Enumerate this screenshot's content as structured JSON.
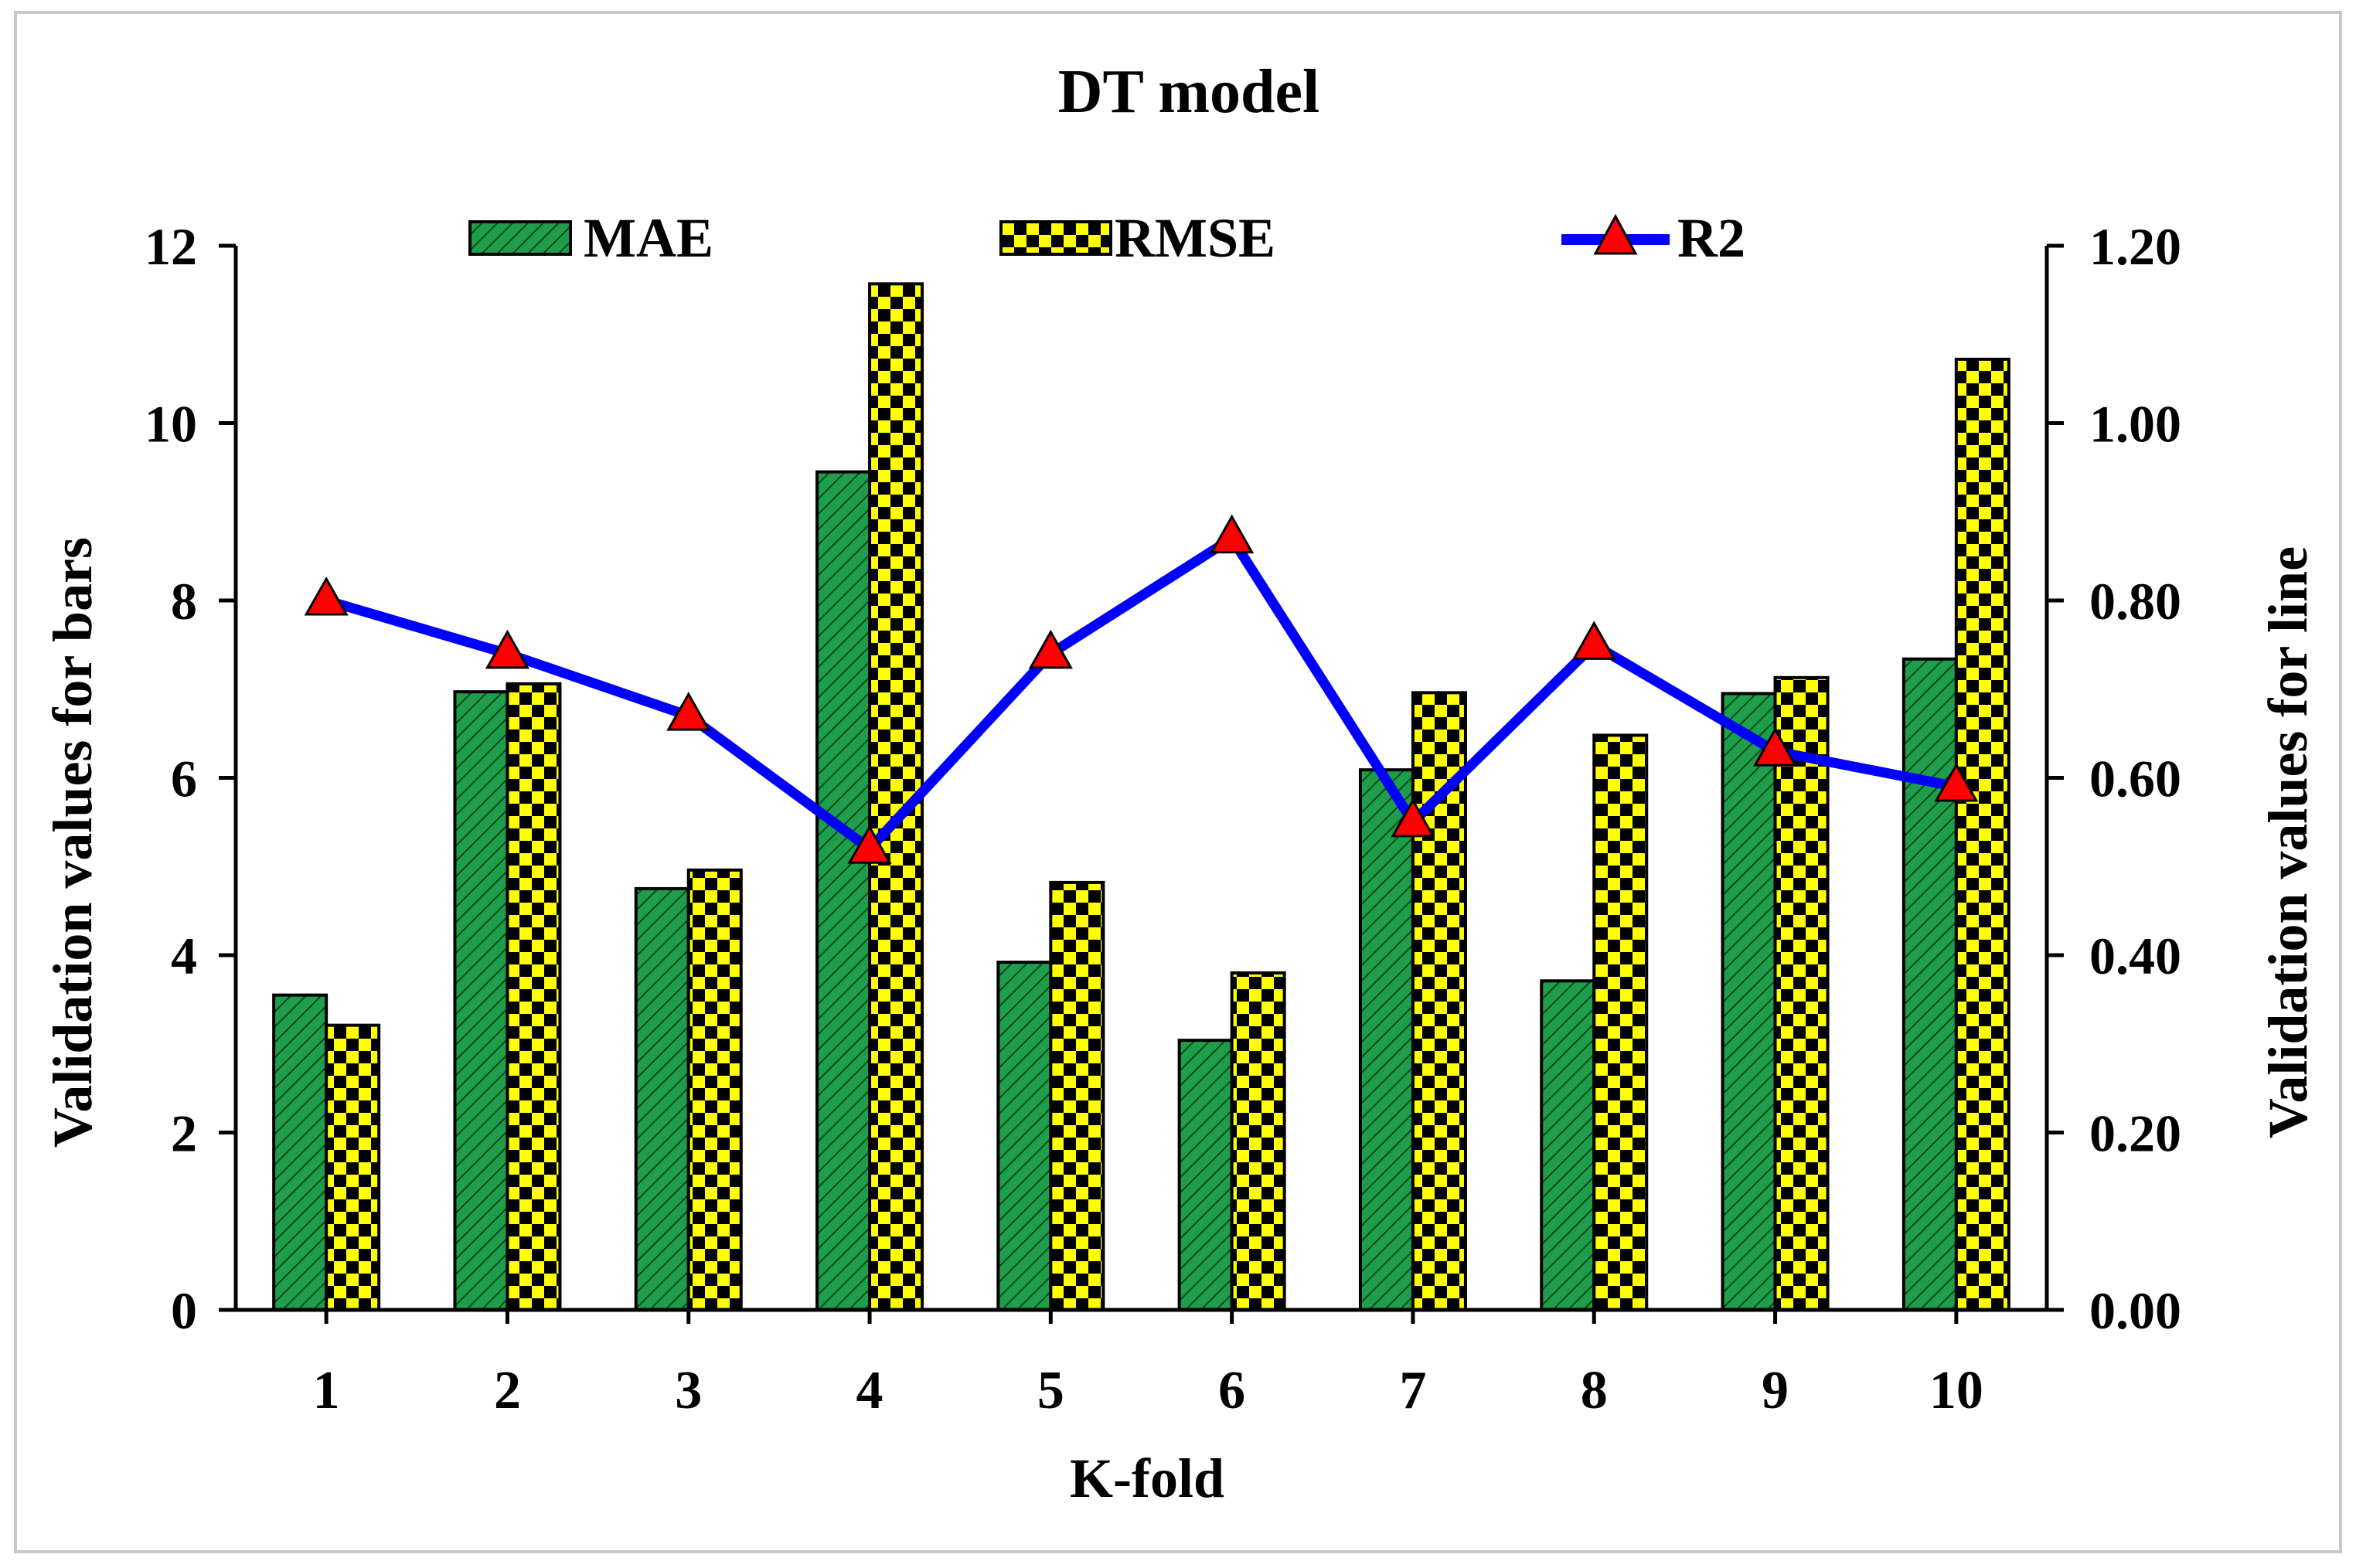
{
  "chart_data": {
    "type": "bar",
    "title": "DT model",
    "xlabel": "K-fold",
    "ylabel_left": "Validation values for bars",
    "ylabel_right": "Validation values for line",
    "categories": [
      "1",
      "2",
      "3",
      "4",
      "5",
      "6",
      "7",
      "8",
      "9",
      "10"
    ],
    "series": [
      {
        "name": "MAE",
        "kind": "bar",
        "axis": "left",
        "color": "#1e9e4a",
        "values": [
          3.55,
          6.97,
          4.75,
          9.45,
          3.92,
          3.04,
          6.09,
          3.71,
          6.95,
          7.34
        ]
      },
      {
        "name": "RMSE",
        "kind": "bar",
        "axis": "left",
        "color": "#ffff00",
        "values": [
          3.21,
          7.06,
          4.96,
          11.57,
          4.82,
          3.8,
          6.96,
          6.48,
          7.13,
          10.72
        ]
      },
      {
        "name": "R2",
        "kind": "line",
        "axis": "right",
        "color": "#0000ff",
        "marker_color": "#ff0000",
        "values": [
          0.8,
          0.74,
          0.67,
          0.52,
          0.74,
          0.87,
          0.55,
          0.75,
          0.63,
          0.59
        ]
      }
    ],
    "ylim_left": [
      0,
      12
    ],
    "yticks_left": [
      "0",
      "2",
      "4",
      "6",
      "8",
      "10",
      "12"
    ],
    "ylim_right": [
      0,
      1.2
    ],
    "yticks_right": [
      "0.00",
      "0.20",
      "0.40",
      "0.60",
      "0.80",
      "1.00",
      "1.20"
    ],
    "grid": false,
    "legend_position": "top"
  }
}
